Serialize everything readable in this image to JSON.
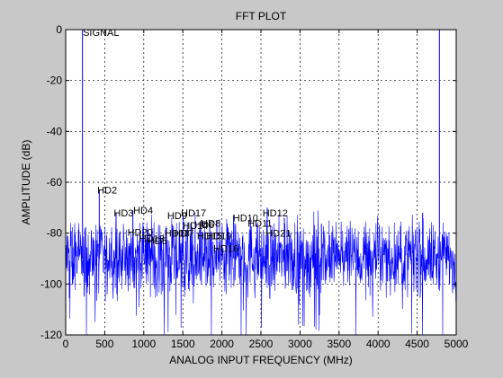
{
  "window": {
    "background": "#c8c8c8"
  },
  "chart_data": {
    "type": "line",
    "title": "FFT PLOT",
    "xlabel": "ANALOG INPUT FREQUENCY (MHz)",
    "ylabel": "AMPLITUDE (dB)",
    "xlim": [
      0,
      5000
    ],
    "ylim": [
      -120,
      0
    ],
    "xticks": [
      0,
      500,
      1000,
      1500,
      2000,
      2500,
      3000,
      3500,
      4000,
      4500,
      5000
    ],
    "yticks": [
      0,
      -20,
      -40,
      -60,
      -80,
      -100,
      -120
    ],
    "xtick_labels": [
      "0",
      "500",
      "1000",
      "1500",
      "2000",
      "2500",
      "3000",
      "3500",
      "4000",
      "4500",
      "5000"
    ],
    "ytick_labels": [
      "0",
      "-20",
      "-40",
      "-60",
      "-80",
      "-100",
      "-120"
    ],
    "grid": true,
    "grid_style": "dashed",
    "line_color": "#0000ff",
    "noise_floor": {
      "mean_db": -90,
      "spread_db": 7,
      "min_db": -120,
      "max_db": -78
    },
    "series": [
      {
        "spurs": [
          {
            "x": 215,
            "y": 0
          },
          {
            "x": 430,
            "y": -63
          },
          {
            "x": 645,
            "y": -72
          },
          {
            "x": 860,
            "y": -71
          },
          {
            "x": 1075,
            "y": -80
          },
          {
            "x": 1290,
            "y": -78
          },
          {
            "x": 1505,
            "y": -73
          },
          {
            "x": 1720,
            "y": -76
          },
          {
            "x": 1935,
            "y": -75
          },
          {
            "x": 2150,
            "y": -73
          },
          {
            "x": 2365,
            "y": -74
          },
          {
            "x": 2580,
            "y": -70
          },
          {
            "x": 2800,
            "y": -74
          },
          {
            "x": 4570,
            "y": -72
          },
          {
            "x": 4785,
            "y": 0
          }
        ]
      }
    ],
    "annotations": [
      {
        "text": "SIGNAL",
        "x": 220,
        "y": -1
      },
      {
        "text": "HD2",
        "x": 405,
        "y": -63
      },
      {
        "text": "HD3",
        "x": 615,
        "y": -72
      },
      {
        "text": "HD4",
        "x": 865,
        "y": -71
      },
      {
        "text": "HD20",
        "x": 790,
        "y": -79.5
      },
      {
        "text": "HD13",
        "x": 940,
        "y": -82
      },
      {
        "text": "HD5",
        "x": 1045,
        "y": -83
      },
      {
        "text": "HD9",
        "x": 1300,
        "y": -73
      },
      {
        "text": "HD17",
        "x": 1475,
        "y": -72
      },
      {
        "text": "HD18",
        "x": 1265,
        "y": -80
      },
      {
        "text": "HD7",
        "x": 1385,
        "y": -80
      },
      {
        "text": "HD14",
        "x": 1500,
        "y": -77
      },
      {
        "text": "HD6",
        "x": 1650,
        "y": -76.5
      },
      {
        "text": "HD8",
        "x": 1730,
        "y": -76
      },
      {
        "text": "HD15",
        "x": 1680,
        "y": -81
      },
      {
        "text": "HD19",
        "x": 1800,
        "y": -81
      },
      {
        "text": "HD16",
        "x": 1890,
        "y": -86
      },
      {
        "text": "HD10",
        "x": 2140,
        "y": -74
      },
      {
        "text": "HD11",
        "x": 2330,
        "y": -76
      },
      {
        "text": "HD12",
        "x": 2520,
        "y": -72
      },
      {
        "text": "HD21",
        "x": 2560,
        "y": -80
      }
    ]
  }
}
